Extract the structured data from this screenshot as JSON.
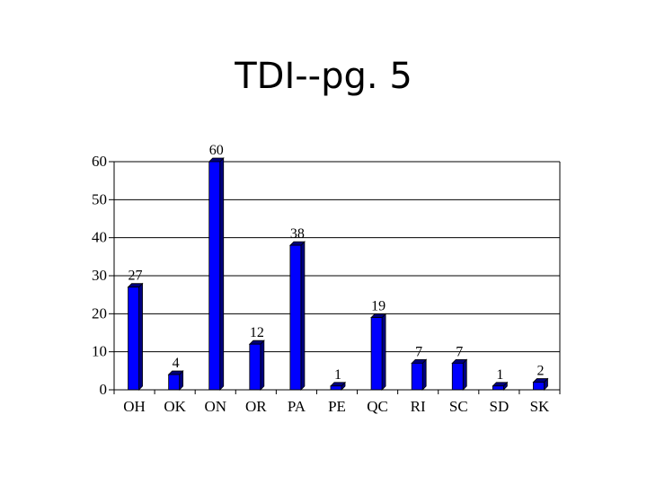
{
  "slide": {
    "title": "TDI--pg. 5"
  },
  "chart_data": {
    "type": "bar",
    "title": "TDI--pg. 5",
    "categories": [
      "OH",
      "OK",
      "ON",
      "OR",
      "PA",
      "PE",
      "QC",
      "RI",
      "SC",
      "SD",
      "SK"
    ],
    "values": [
      27,
      4,
      60,
      12,
      38,
      1,
      19,
      7,
      7,
      1,
      2
    ],
    "data_labels": [
      "27",
      "4",
      "60",
      "12",
      "38",
      "1",
      "19",
      "7",
      "7",
      "1",
      "2"
    ],
    "ylim": [
      0,
      60
    ],
    "yticks": [
      0,
      10,
      20,
      30,
      40,
      50,
      60
    ],
    "xlabel": "",
    "ylabel": "",
    "grid": true,
    "legend": "none",
    "colors": {
      "bar_front": "#0000ff",
      "bar_side": "#000080",
      "bar_top": "#00007a",
      "grid": "#000000"
    }
  }
}
